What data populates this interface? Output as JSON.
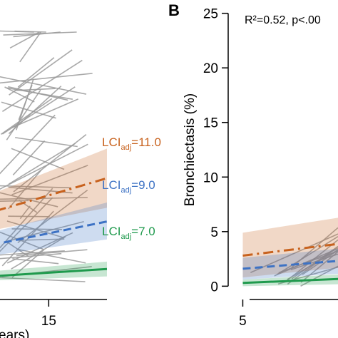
{
  "chart_data": [
    {
      "panel": "",
      "type": "line",
      "xlabel": "ears)",
      "ylabel": "",
      "xlim": [
        5.5,
        21
      ],
      "ylim": [
        0,
        26
      ],
      "x_ticks": [
        15
      ],
      "y_ticks": [],
      "colors": {
        "lci11": "#c8621e",
        "lci9": "#3d72c4",
        "lci7": "#1f9a4d",
        "subject": "#9a9a9a"
      },
      "series": [
        {
          "name": "LCI_adj=11.0",
          "key": "lci11",
          "style": "dashdot",
          "x": [
            5.5,
            21
          ],
          "y": [
            5.6,
            9.8
          ],
          "band_lower": [
            4.2,
            7.0
          ],
          "band_upper": [
            7.0,
            12.6
          ]
        },
        {
          "name": "LCI_adj=9.0",
          "key": "lci9",
          "style": "dashed",
          "x": [
            5.5,
            21
          ],
          "y": [
            2.8,
            5.7
          ],
          "band_lower": [
            2.0,
            4.0
          ],
          "band_upper": [
            3.8,
            7.5
          ]
        },
        {
          "name": "LCI_adj=7.0",
          "key": "lci7",
          "style": "solid",
          "x": [
            5.5,
            21
          ],
          "y": [
            0.3,
            1.2
          ],
          "band_lower": [
            0.0,
            0.5
          ],
          "band_upper": [
            0.7,
            1.9
          ]
        }
      ],
      "labels": [
        {
          "base": "LCI",
          "sub": "adj",
          "value": "=11.0",
          "key": "lci11"
        },
        {
          "base": "LCI",
          "sub": "adj",
          "value": "=9.0",
          "key": "lci9"
        },
        {
          "base": "LCI",
          "sub": "adj",
          "value": "=7.0",
          "key": "lci7"
        }
      ]
    },
    {
      "panel": "B",
      "type": "line",
      "xlabel": "",
      "ylabel": "Bronchiectasis (%)",
      "annotation": "R²=0.52, p<.00",
      "xlim": [
        4.5,
        14
      ],
      "ylim": [
        -0.5,
        25.5
      ],
      "x_ticks": [
        5
      ],
      "y_ticks": [
        0,
        5,
        10,
        15,
        20,
        25
      ],
      "series": [
        {
          "name": "LCI_adj=11.0",
          "key": "lci11",
          "style": "dashdot",
          "x": [
            5,
            14
          ],
          "y": [
            2.8,
            4.6
          ],
          "band_lower": [
            0.8,
            2.3
          ],
          "band_upper": [
            4.9,
            7.2
          ]
        },
        {
          "name": "LCI_adj=9.0",
          "key": "lci9",
          "style": "dashed",
          "x": [
            5,
            14
          ],
          "y": [
            1.6,
            2.8
          ],
          "band_lower": [
            0.6,
            1.5
          ],
          "band_upper": [
            2.6,
            4.0
          ]
        },
        {
          "name": "LCI_adj=7.0",
          "key": "lci7",
          "style": "solid",
          "x": [
            5,
            14
          ],
          "y": [
            0.3,
            0.9
          ],
          "band_lower": [
            0.0,
            0.3
          ],
          "band_upper": [
            0.6,
            1.4
          ]
        }
      ]
    }
  ]
}
